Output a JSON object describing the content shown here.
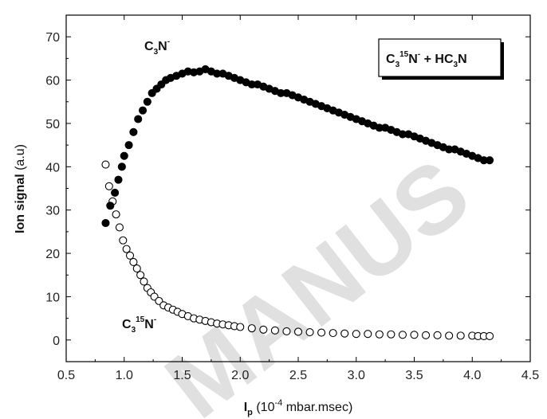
{
  "chart_data": {
    "type": "scatter",
    "xlabel": {
      "main": "I",
      "sub": "p",
      "rest": " (10",
      "sup": "-4",
      "unit": " mbar.msec)"
    },
    "ylabel": {
      "bold": "Ion signal",
      "normal": " (a.u)"
    },
    "xlim": [
      0.5,
      4.5
    ],
    "ylim": [
      -5,
      75
    ],
    "x_ticks": [
      "0.5",
      "1.0",
      "1.5",
      "2.0",
      "2.5",
      "3.0",
      "3.5",
      "4.0",
      "4.5"
    ],
    "y_ticks": [
      "0",
      "10",
      "20",
      "30",
      "40",
      "50",
      "60",
      "70"
    ],
    "legend_box": {
      "pre": "C",
      "sub1": "3",
      "sup1": "15",
      "mid": "N",
      "sup2": "-",
      "rest": " + HC",
      "sub2": "3",
      "end": "N"
    },
    "annotations": {
      "upper": {
        "base": "C",
        "sub": "3",
        "tail": "N",
        "sup": "-"
      },
      "lower": {
        "base": "C",
        "sub": "3",
        "sup1": "15",
        "tail": "N",
        "sup": "-"
      }
    },
    "watermark": "MANUS",
    "series": [
      {
        "marker": "filled-circle",
        "color": "#000000",
        "x": [
          0.84,
          0.88,
          0.92,
          0.95,
          0.98,
          1.0,
          1.04,
          1.08,
          1.12,
          1.16,
          1.2,
          1.24,
          1.28,
          1.32,
          1.36,
          1.4,
          1.45,
          1.5,
          1.55,
          1.6,
          1.65,
          1.7,
          1.75,
          1.8,
          1.85,
          1.9,
          1.95,
          2.0,
          2.05,
          2.1,
          2.15,
          2.2,
          2.25,
          2.3,
          2.35,
          2.4,
          2.45,
          2.5,
          2.55,
          2.6,
          2.65,
          2.7,
          2.75,
          2.8,
          2.85,
          2.9,
          2.95,
          3.0,
          3.05,
          3.1,
          3.15,
          3.2,
          3.25,
          3.3,
          3.35,
          3.4,
          3.45,
          3.5,
          3.55,
          3.6,
          3.65,
          3.7,
          3.75,
          3.8,
          3.85,
          3.9,
          3.95,
          4.0,
          4.05,
          4.1,
          4.15
        ],
        "y": [
          27,
          31,
          34,
          37,
          40,
          42.5,
          45,
          48,
          51,
          53,
          55,
          57,
          58,
          59,
          60,
          60.5,
          61,
          61.5,
          62,
          61.8,
          62,
          62.5,
          62,
          61.5,
          61.5,
          61,
          60.5,
          60,
          59.5,
          59,
          59,
          58.5,
          58,
          57.5,
          57,
          57,
          56.5,
          56,
          55.5,
          55,
          54.5,
          54,
          53.5,
          53,
          52.5,
          52,
          51.5,
          51,
          50.5,
          50,
          49.5,
          49,
          49,
          48.5,
          48,
          47.5,
          47.5,
          47,
          46.5,
          46,
          45.5,
          45,
          44.5,
          44,
          44,
          43.5,
          43,
          42.5,
          42,
          41.5,
          41.5
        ]
      },
      {
        "marker": "open-circle",
        "color": "#000000",
        "x": [
          0.84,
          0.87,
          0.9,
          0.93,
          0.96,
          0.99,
          1.02,
          1.05,
          1.08,
          1.11,
          1.14,
          1.17,
          1.2,
          1.23,
          1.26,
          1.3,
          1.34,
          1.38,
          1.42,
          1.46,
          1.5,
          1.55,
          1.6,
          1.65,
          1.7,
          1.75,
          1.8,
          1.85,
          1.9,
          1.95,
          2.0,
          2.1,
          2.2,
          2.3,
          2.4,
          2.5,
          2.6,
          2.7,
          2.8,
          2.9,
          3.0,
          3.1,
          3.2,
          3.3,
          3.4,
          3.5,
          3.6,
          3.7,
          3.8,
          3.9,
          4.0,
          4.05,
          4.1,
          4.15
        ],
        "y": [
          40.5,
          35.5,
          32,
          29,
          26,
          23,
          21,
          19.5,
          18,
          16.5,
          15,
          13.5,
          12,
          11,
          10,
          9,
          8,
          7.5,
          7,
          6.5,
          6,
          5.5,
          5,
          4.7,
          4.4,
          4.1,
          3.8,
          3.6,
          3.4,
          3.2,
          3.0,
          2.7,
          2.4,
          2.2,
          2.0,
          1.9,
          1.8,
          1.7,
          1.6,
          1.5,
          1.4,
          1.4,
          1.3,
          1.3,
          1.2,
          1.2,
          1.1,
          1.1,
          1.0,
          1.0,
          1.0,
          0.9,
          0.9,
          0.9
        ]
      }
    ]
  }
}
